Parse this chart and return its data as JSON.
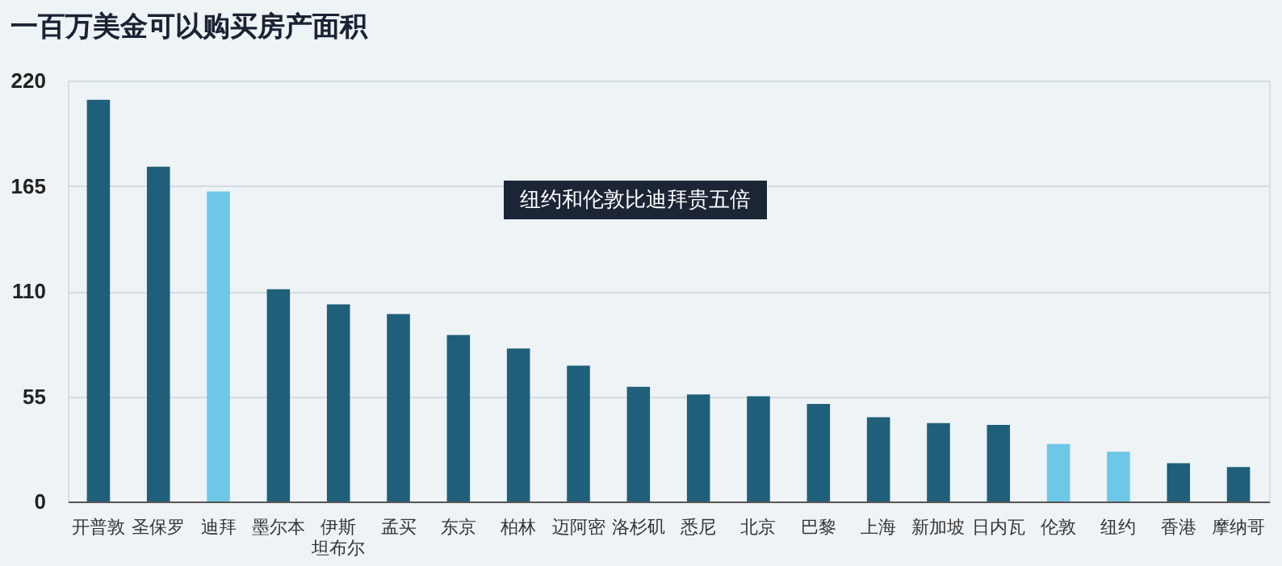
{
  "chart_data": {
    "type": "bar",
    "title": "一百万美金可以购买房产面积",
    "categories": [
      "开普敦",
      "圣保罗",
      "迪拜",
      "墨尔本",
      "伊斯坦布尔",
      "孟买",
      "东京",
      "柏林",
      "迈阿密",
      "洛杉矶",
      "悉尼",
      "北京",
      "巴黎",
      "上海",
      "新加坡",
      "日内瓦",
      "伦敦",
      "纽约",
      "香港",
      "摩纳哥"
    ],
    "values": [
      210,
      175,
      162,
      111,
      103,
      98,
      87,
      80,
      71,
      60,
      56,
      55,
      51,
      44,
      41,
      40,
      30,
      26,
      20,
      18
    ],
    "colors": [
      "#1f5f7a",
      "#1f5f7a",
      "#6cc8e6",
      "#1f5f7a",
      "#1f5f7a",
      "#1f5f7a",
      "#1f5f7a",
      "#1f5f7a",
      "#1f5f7a",
      "#1f5f7a",
      "#1f5f7a",
      "#1f5f7a",
      "#1f5f7a",
      "#1f5f7a",
      "#1f5f7a",
      "#1f5f7a",
      "#6cc8e6",
      "#6cc8e6",
      "#1f5f7a",
      "#1f5f7a"
    ],
    "ylim": [
      0,
      220
    ],
    "yticks": [
      0,
      55,
      110,
      165,
      220
    ],
    "grid": "y",
    "annotations": [
      "纽约和伦敦比迪拜贵五倍"
    ]
  }
}
